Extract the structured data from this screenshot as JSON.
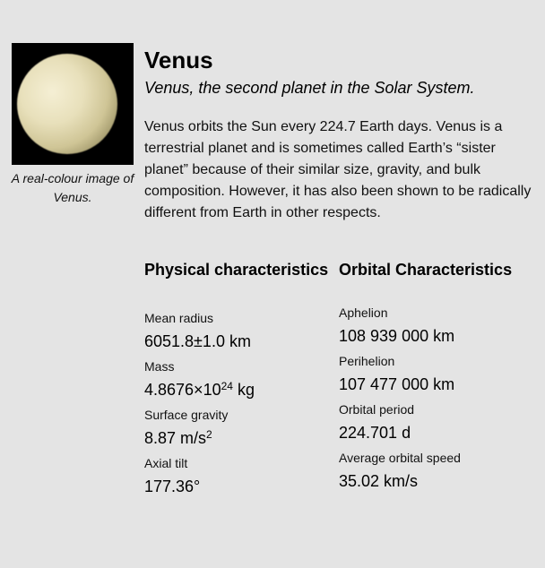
{
  "figure": {
    "image": "venus-photo",
    "caption": "A real-colour image of Venus."
  },
  "article": {
    "title": "Venus",
    "subtitle": "Venus, the second planet in the Solar System.",
    "description": "Venus orbits the Sun every 224.7 Earth days. Venus is a terrestrial planet and is sometimes called Earth’s “sister planet” because of their similar size, gravity, and bulk composition. However, it has also been shown to be radically different from Earth in other respects."
  },
  "physical": {
    "heading": "Physical characteristics",
    "specs": [
      {
        "label": "Mean radius",
        "value": "6051.8±1.0 km"
      },
      {
        "label": "Mass",
        "value_base": "4.8676×10",
        "value_exp": "24",
        "value_unit": " kg"
      },
      {
        "label": "Surface gravity",
        "value_base": "8.87 m/s",
        "value_exp": "2"
      },
      {
        "label": "Axial tilt",
        "value": "177.36°"
      }
    ]
  },
  "orbital": {
    "heading": "Orbital Characteristics",
    "specs": [
      {
        "label": "Aphelion",
        "value": "108 939 000 km"
      },
      {
        "label": "Perihelion",
        "value": "107 477 000 km"
      },
      {
        "label": "Orbital period",
        "value": "224.701 d"
      },
      {
        "label": "Average orbital speed",
        "value": "35.02 km/s"
      }
    ]
  }
}
